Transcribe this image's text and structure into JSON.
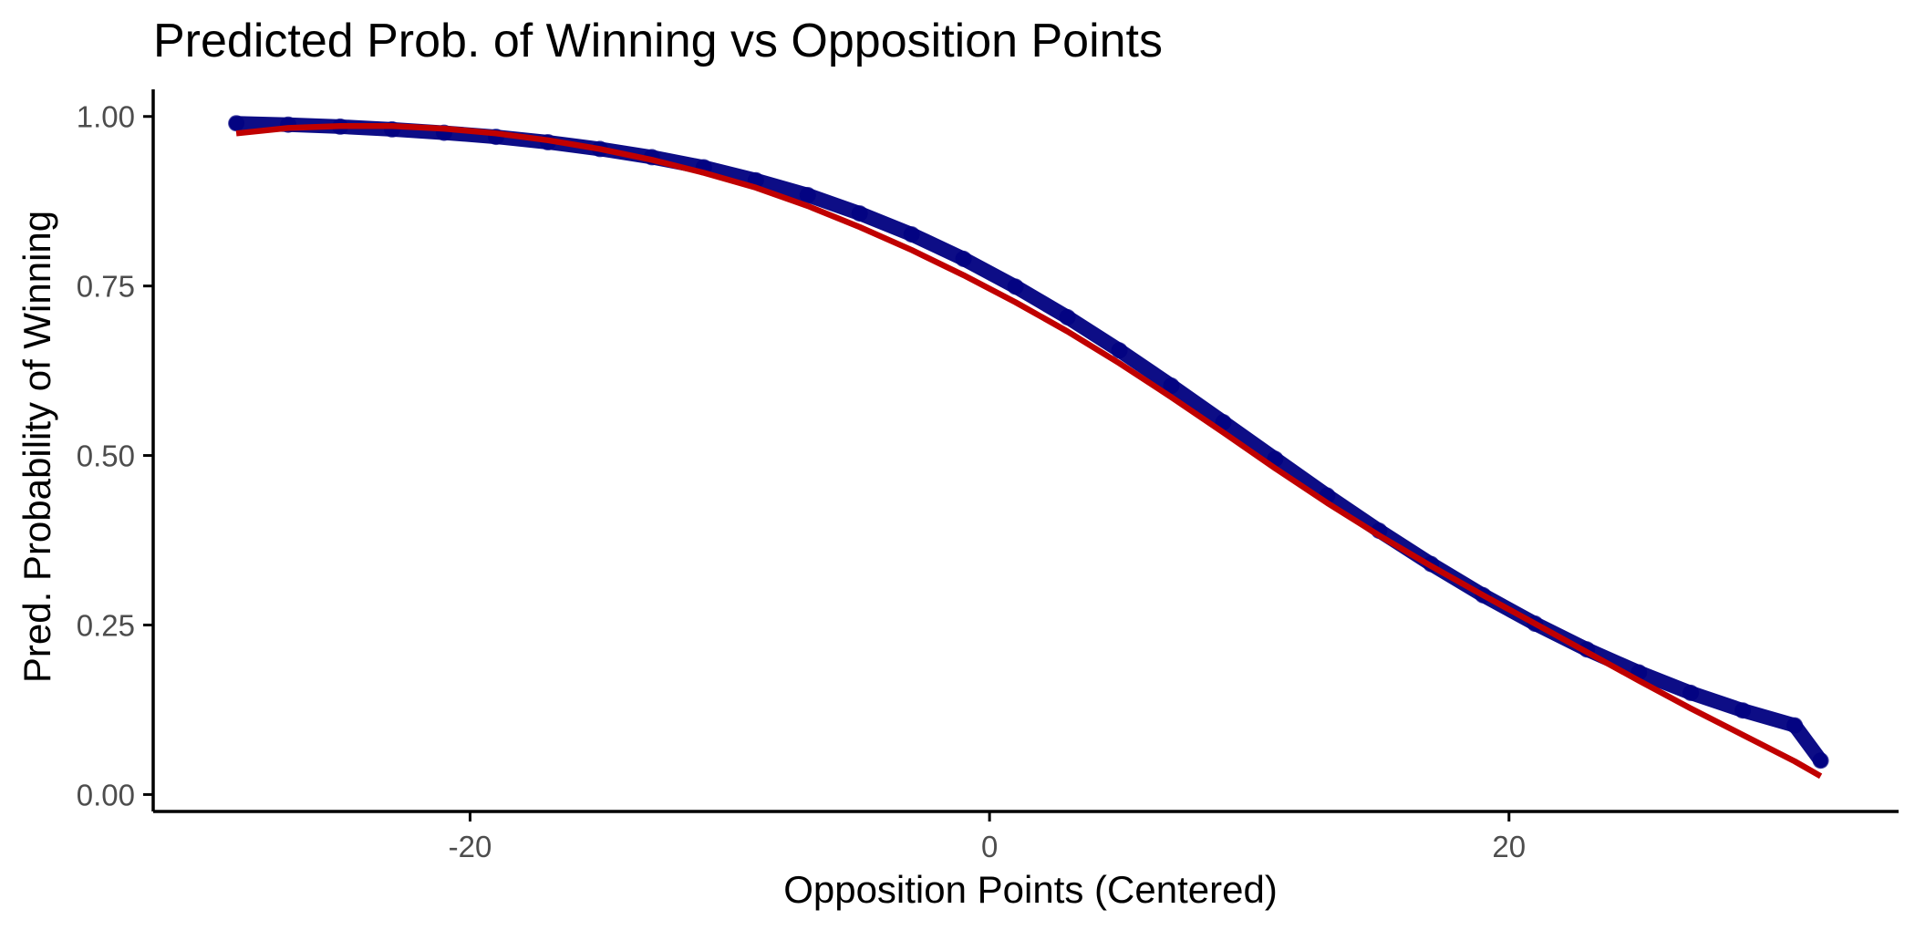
{
  "chart_data": {
    "type": "line",
    "title": "Predicted Prob. of Winning vs Opposition Points",
    "xlabel": "Opposition Points (Centered)",
    "ylabel": "Pred. Probability of Winning",
    "xlim": [
      -32.2,
      35.0
    ],
    "ylim": [
      -0.025,
      1.04
    ],
    "x_ticks": [
      -20,
      0,
      20
    ],
    "x_tick_labels": [
      "-20",
      "0",
      "20"
    ],
    "y_ticks": [
      0,
      0.25,
      0.5,
      0.75,
      1.0
    ],
    "y_tick_labels": [
      "0.00",
      "0.25",
      "0.50",
      "0.75",
      "1.00"
    ],
    "grid": false,
    "legend": "none",
    "series": [
      {
        "style": "points",
        "color": "#000080",
        "x": [
          -29.0,
          -27.0,
          -25.0,
          -23.0,
          -21.0,
          -19.0,
          -17.0,
          -15.0,
          -13.0,
          -11.0,
          -9.0,
          -7.0,
          -5.0,
          -3.0,
          -1.0,
          1.0,
          3.0,
          5.0,
          7.0,
          9.0,
          11.0,
          13.0,
          15.0,
          17.0,
          19.0,
          21.0,
          23.0,
          25.0,
          27.0,
          29.0,
          31.0,
          32.0
        ],
        "y": [
          0.99,
          0.988,
          0.985,
          0.981,
          0.976,
          0.97,
          0.962,
          0.952,
          0.94,
          0.925,
          0.906,
          0.884,
          0.857,
          0.826,
          0.79,
          0.749,
          0.704,
          0.655,
          0.603,
          0.549,
          0.495,
          0.441,
          0.389,
          0.34,
          0.294,
          0.252,
          0.214,
          0.18,
          0.15,
          0.124,
          0.102,
          0.05
        ]
      },
      {
        "style": "line",
        "color": "#c00000",
        "x": [
          -29.0,
          -27.0,
          -25.0,
          -23.0,
          -21.0,
          -19.0,
          -17.0,
          -15.0,
          -13.0,
          -11.0,
          -9.0,
          -7.0,
          -5.0,
          -3.0,
          -1.0,
          1.0,
          3.0,
          5.0,
          7.0,
          9.0,
          11.0,
          13.0,
          15.0,
          17.0,
          19.0,
          21.0,
          23.0,
          25.0,
          27.0,
          29.0,
          31.0,
          32.0
        ],
        "y": [
          0.975,
          0.983,
          0.986,
          0.986,
          0.982,
          0.975,
          0.965,
          0.952,
          0.936,
          0.917,
          0.895,
          0.868,
          0.837,
          0.803,
          0.766,
          0.726,
          0.683,
          0.636,
          0.586,
          0.534,
          0.481,
          0.43,
          0.382,
          0.337,
          0.294,
          0.252,
          0.21,
          0.168,
          0.127,
          0.088,
          0.049,
          0.027
        ]
      }
    ]
  }
}
